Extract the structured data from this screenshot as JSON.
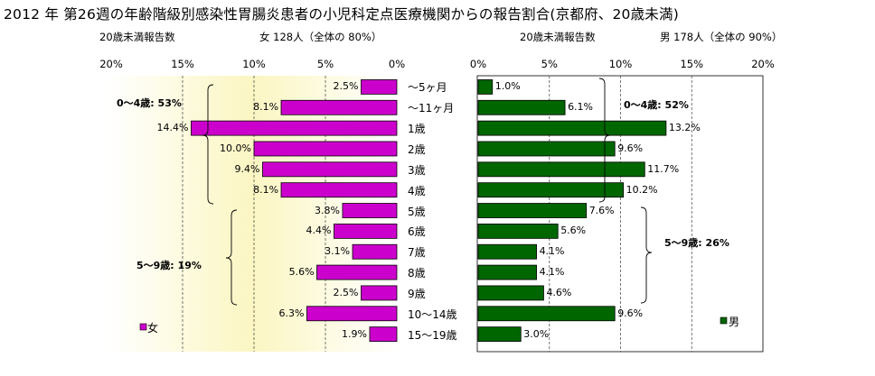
{
  "title": "2012 年 第26週の年齢階級別感染性胃腸炎患者の小児科定点医療機関からの報告割合(京都府、20歳未満)",
  "chart_data": [
    {
      "type": "bar",
      "orientation": "horizontal",
      "direction": "right-to-left",
      "subtitle_left": "20歳未満報告数",
      "subtitle_right": "女 128人（全体の 80%）",
      "categories": [
        "～5ヶ月",
        "～11ヶ月",
        "1歳",
        "2歳",
        "3歳",
        "4歳",
        "5歳",
        "6歳",
        "7歳",
        "8歳",
        "9歳",
        "10～14歳",
        "15～19歳"
      ],
      "values": [
        2.5,
        8.1,
        14.4,
        10.0,
        9.4,
        8.1,
        3.8,
        4.4,
        3.1,
        5.6,
        2.5,
        6.3,
        1.9
      ],
      "value_labels": [
        "2.5%",
        "8.1%",
        "14.4%",
        "10.0%",
        "9.4%",
        "8.1%",
        "3.8%",
        "4.4%",
        "3.1%",
        "5.6%",
        "2.5%",
        "6.3%",
        "1.9%"
      ],
      "xlim": [
        0,
        20
      ],
      "xticks": [
        "20%",
        "15%",
        "10%",
        "5%",
        "0%"
      ],
      "grid": "vertical dashed",
      "color": "#cc00cc",
      "series": [
        {
          "name": "女",
          "values": [
            2.5,
            8.1,
            14.4,
            10.0,
            9.4,
            8.1,
            3.8,
            4.4,
            3.1,
            5.6,
            2.5,
            6.3,
            1.9
          ]
        }
      ],
      "legend": "女",
      "legend_position": "bottom-left",
      "group_annotations": [
        {
          "label": "0～4歳: 53%",
          "from": "～5ヶ月",
          "to": "4歳"
        },
        {
          "label": "5～9歳: 19%",
          "from": "5歳",
          "to": "9歳"
        }
      ]
    },
    {
      "type": "bar",
      "orientation": "horizontal",
      "direction": "left-to-right",
      "subtitle_left": "20歳未満報告数",
      "subtitle_right": "男 178人（全体の 90%）",
      "categories": [
        "～5ヶ月",
        "～11ヶ月",
        "1歳",
        "2歳",
        "3歳",
        "4歳",
        "5歳",
        "6歳",
        "7歳",
        "8歳",
        "9歳",
        "10～14歳",
        "15～19歳"
      ],
      "values": [
        1.0,
        6.1,
        13.2,
        9.6,
        11.7,
        10.2,
        7.6,
        5.6,
        4.1,
        4.1,
        4.6,
        9.6,
        3.0
      ],
      "value_labels": [
        "1.0%",
        "6.1%",
        "13.2%",
        "9.6%",
        "11.7%",
        "10.2%",
        "7.6%",
        "5.6%",
        "4.1%",
        "4.1%",
        "4.6%",
        "9.6%",
        "3.0%"
      ],
      "xlim": [
        0,
        20
      ],
      "xticks": [
        "0%",
        "5%",
        "10%",
        "15%",
        "20%"
      ],
      "grid": "vertical dashed",
      "color": "#006600",
      "series": [
        {
          "name": "男",
          "values": [
            1.0,
            6.1,
            13.2,
            9.6,
            11.7,
            10.2,
            7.6,
            5.6,
            4.1,
            4.1,
            4.6,
            9.6,
            3.0
          ]
        }
      ],
      "legend": "男",
      "legend_position": "bottom-right",
      "group_annotations": [
        {
          "label": "0～4歳: 52%",
          "from": "～5ヶ月",
          "to": "4歳"
        },
        {
          "label": "5～9歳: 26%",
          "from": "5歳",
          "to": "9歳"
        }
      ]
    }
  ],
  "colors": {
    "left_plot_bg_edge": "#ffffff",
    "left_plot_bg_center": "#fbf7c8",
    "right_plot_bg": "#ffffff",
    "female_bar": "#cc00cc",
    "male_bar": "#006600",
    "bar_outline": "#000000",
    "grid": "#555555"
  }
}
